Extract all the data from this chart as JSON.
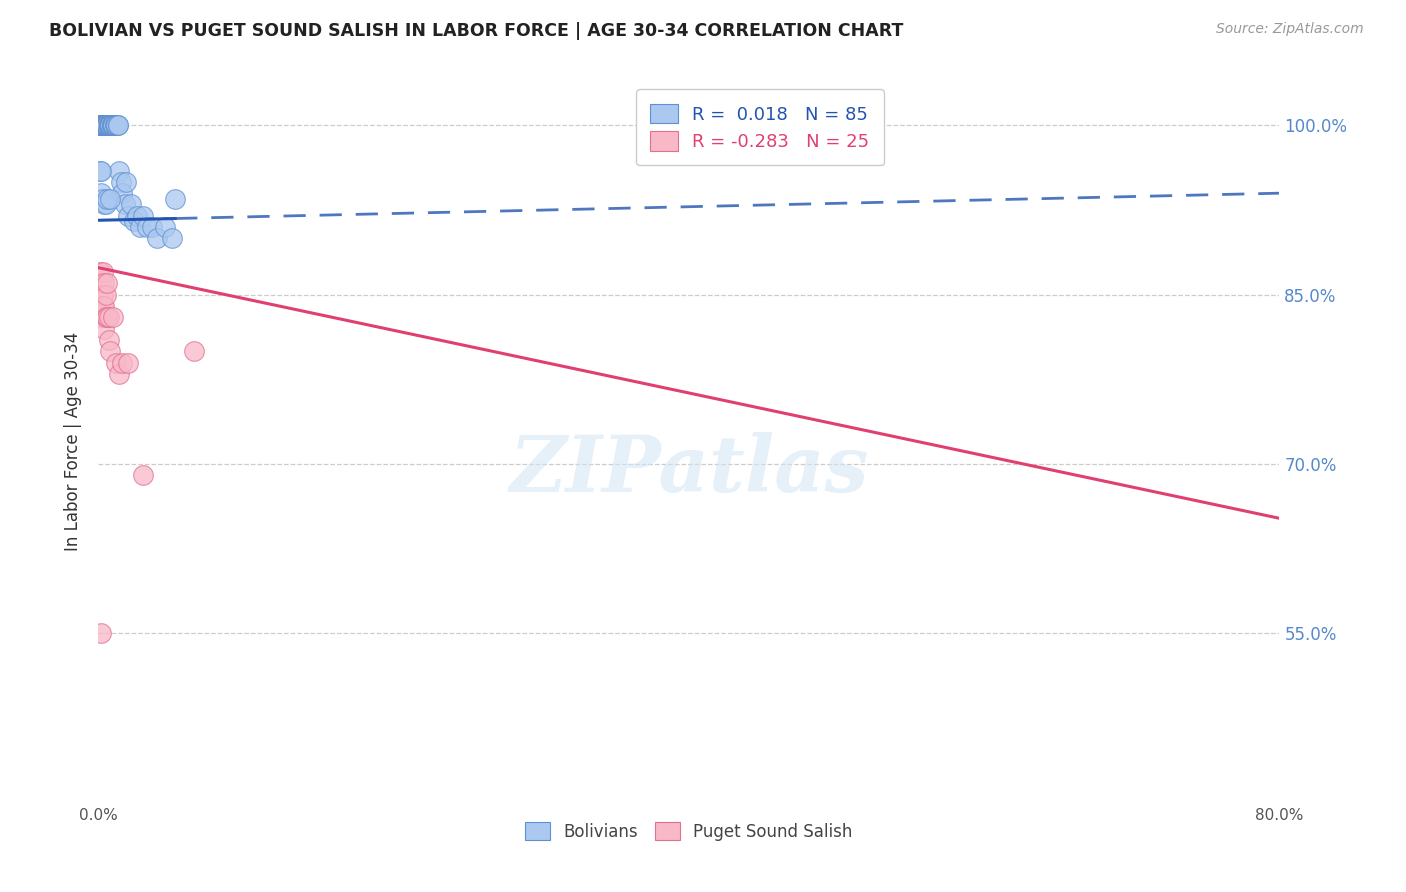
{
  "title": "BOLIVIAN VS PUGET SOUND SALISH IN LABOR FORCE | AGE 30-34 CORRELATION CHART",
  "source": "Source: ZipAtlas.com",
  "ylabel": "In Labor Force | Age 30-34",
  "xlim": [
    0.0,
    0.8
  ],
  "ylim": [
    0.4,
    1.04
  ],
  "yticks": [
    0.55,
    0.7,
    0.85,
    1.0
  ],
  "ytick_labels": [
    "55.0%",
    "70.0%",
    "85.0%",
    "100.0%"
  ],
  "xticks": [
    0.0,
    0.1,
    0.2,
    0.3,
    0.4,
    0.5,
    0.6,
    0.7,
    0.8
  ],
  "xtick_labels": [
    "0.0%",
    "",
    "",
    "",
    "",
    "",
    "",
    "",
    "80.0%"
  ],
  "blue_R": 0.018,
  "blue_N": 85,
  "pink_R": -0.283,
  "pink_N": 25,
  "blue_color": "#aac8f0",
  "pink_color": "#f8b8c8",
  "blue_edge_color": "#6090d0",
  "pink_edge_color": "#e07090",
  "blue_line_color": "#2255b0",
  "pink_line_color": "#e04070",
  "watermark": "ZIPatlas",
  "background_color": "#ffffff",
  "legend_label_blue": "Bolivians",
  "legend_label_pink": "Puget Sound Salish",
  "blue_line_x0": 0.0,
  "blue_line_y0": 0.916,
  "blue_line_x1": 0.8,
  "blue_line_y1": 0.94,
  "blue_line_solid_end": 0.052,
  "pink_line_x0": 0.0,
  "pink_line_y0": 0.874,
  "pink_line_x1": 0.8,
  "pink_line_y1": 0.652,
  "blue_scatter_x": [
    0.001,
    0.001,
    0.001,
    0.001,
    0.002,
    0.002,
    0.002,
    0.002,
    0.003,
    0.003,
    0.003,
    0.003,
    0.003,
    0.003,
    0.003,
    0.003,
    0.004,
    0.004,
    0.004,
    0.004,
    0.004,
    0.004,
    0.004,
    0.005,
    0.005,
    0.005,
    0.005,
    0.005,
    0.005,
    0.005,
    0.006,
    0.006,
    0.006,
    0.006,
    0.006,
    0.006,
    0.006,
    0.007,
    0.007,
    0.007,
    0.007,
    0.007,
    0.007,
    0.008,
    0.008,
    0.008,
    0.008,
    0.009,
    0.009,
    0.009,
    0.009,
    0.01,
    0.01,
    0.01,
    0.011,
    0.011,
    0.012,
    0.012,
    0.013,
    0.013,
    0.014,
    0.015,
    0.016,
    0.018,
    0.019,
    0.02,
    0.022,
    0.024,
    0.026,
    0.028,
    0.03,
    0.033,
    0.036,
    0.04,
    0.045,
    0.05,
    0.001,
    0.002,
    0.002,
    0.003,
    0.004,
    0.005,
    0.006,
    0.008,
    0.052
  ],
  "blue_scatter_y": [
    1.0,
    1.0,
    1.0,
    1.0,
    1.0,
    1.0,
    1.0,
    1.0,
    1.0,
    1.0,
    1.0,
    1.0,
    1.0,
    1.0,
    1.0,
    1.0,
    1.0,
    1.0,
    1.0,
    1.0,
    1.0,
    1.0,
    1.0,
    1.0,
    1.0,
    1.0,
    1.0,
    1.0,
    1.0,
    1.0,
    1.0,
    1.0,
    1.0,
    1.0,
    1.0,
    1.0,
    1.0,
    1.0,
    1.0,
    1.0,
    1.0,
    1.0,
    1.0,
    1.0,
    1.0,
    1.0,
    1.0,
    1.0,
    1.0,
    1.0,
    1.0,
    1.0,
    1.0,
    1.0,
    1.0,
    1.0,
    1.0,
    1.0,
    1.0,
    1.0,
    0.96,
    0.95,
    0.94,
    0.93,
    0.95,
    0.92,
    0.93,
    0.915,
    0.92,
    0.91,
    0.92,
    0.91,
    0.91,
    0.9,
    0.91,
    0.9,
    0.96,
    0.96,
    0.94,
    0.935,
    0.93,
    0.93,
    0.935,
    0.935,
    0.935
  ],
  "pink_scatter_x": [
    0.001,
    0.002,
    0.002,
    0.002,
    0.003,
    0.003,
    0.003,
    0.004,
    0.004,
    0.004,
    0.005,
    0.005,
    0.006,
    0.006,
    0.007,
    0.007,
    0.008,
    0.01,
    0.012,
    0.014,
    0.016,
    0.02,
    0.065,
    0.002,
    0.03
  ],
  "pink_scatter_y": [
    0.87,
    0.86,
    0.84,
    0.83,
    0.87,
    0.85,
    0.84,
    0.86,
    0.84,
    0.82,
    0.85,
    0.83,
    0.86,
    0.83,
    0.83,
    0.81,
    0.8,
    0.83,
    0.79,
    0.78,
    0.79,
    0.79,
    0.8,
    0.55,
    0.69
  ]
}
